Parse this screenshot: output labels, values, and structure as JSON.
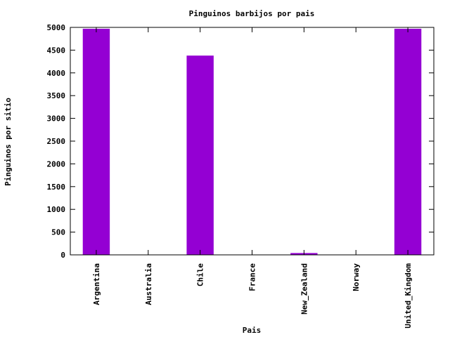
{
  "chart_data": {
    "type": "bar",
    "title": "Pinguinos barbijos por pais",
    "xlabel": "Pais",
    "ylabel": "Pinguinos por sitio",
    "categories": [
      "Argentina",
      "Australia",
      "Chile",
      "France",
      "New_Zealand",
      "Norway",
      "United_Kingdom"
    ],
    "values": [
      4970,
      0,
      4380,
      0,
      40,
      0,
      4970
    ],
    "ylim": [
      0,
      5000
    ],
    "yticks": [
      "0",
      "500",
      "1000",
      "1500",
      "2000",
      "2500",
      "3000",
      "3500",
      "4000",
      "4500",
      "5000"
    ],
    "grid": false,
    "legend": "none",
    "bar_color": "#9400d3"
  }
}
